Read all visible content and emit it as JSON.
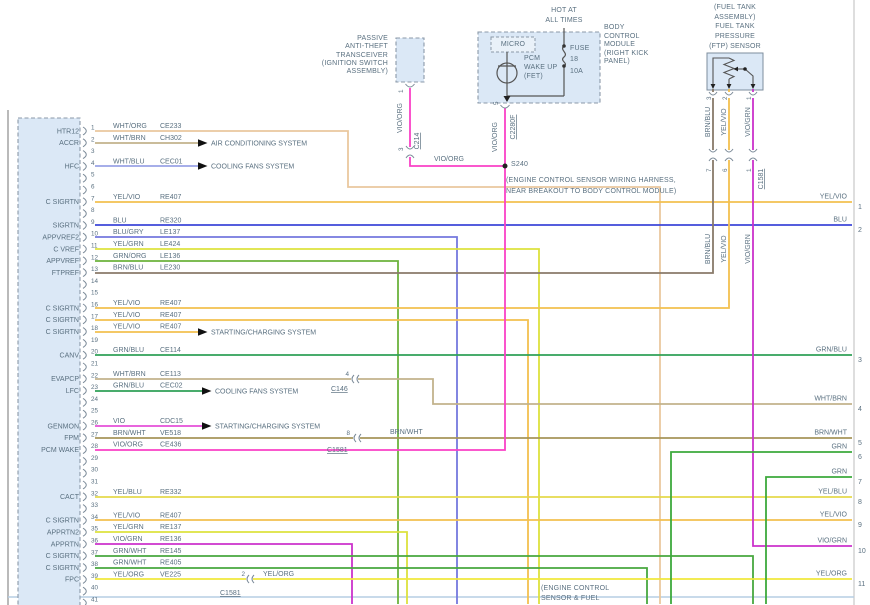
{
  "palette": {
    "WHT/ORG": "#eac89e",
    "WHT/BRN": "#c2b28c",
    "WHT/BLU": "#9aa2e6",
    "YEL/VIO": "#f3c04f",
    "BLU": "#3d47d8",
    "BLU/GRY": "#7478de",
    "YEL/GRN": "#dde23e",
    "GRN/ORG": "#6cb23c",
    "BRN/BLU": "#897a69",
    "GRN/BLU": "#2fa057",
    "VIO": "#e44fd8",
    "BRN/WHT": "#a6945a",
    "VIO/ORG": "#fa41c6",
    "YEL/BLU": "#e4d94b",
    "VIO/GRN": "#cb32cb",
    "GRN/WHT": "#47a83f",
    "YEL/ORG": "#f1e83b",
    "GRN": "#3da93c",
    "box_fill": "#dbe8f6",
    "box_border": "#8b99a8",
    "text": "#5a7080",
    "frame_left": "#8c8c8c",
    "frame_right": "#c9c9c9",
    "frame_bottom": "#b5cde4"
  },
  "pcm": {
    "pin_count": 41,
    "rows": [
      {
        "pin": 1,
        "label": "HTR12",
        "color": "WHT/ORG",
        "code": "CE233"
      },
      {
        "pin": 2,
        "label": "ACCR",
        "color": "WHT/BRN",
        "code": "CH302"
      },
      {
        "pin": 4,
        "label": "HFC",
        "color": "WHT/BLU",
        "code": "CEC01"
      },
      {
        "pin": 7,
        "label": "C SIGRTN",
        "color": "YEL/VIO",
        "code": "RE407"
      },
      {
        "pin": 9,
        "label": "SIGRTN",
        "color": "BLU",
        "code": "RE320"
      },
      {
        "pin": 10,
        "label": "APPVREF2",
        "color": "BLU/GRY",
        "code": "LE137"
      },
      {
        "pin": 11,
        "label": "C VREF",
        "color": "YEL/GRN",
        "code": "LE424"
      },
      {
        "pin": 12,
        "label": "APPVREF",
        "color": "GRN/ORG",
        "code": "LE136"
      },
      {
        "pin": 13,
        "label": "FTPREF",
        "color": "BRN/BLU",
        "code": "LE230"
      },
      {
        "pin": 16,
        "label": "C SIGRTN",
        "color": "YEL/VIO",
        "code": "RE407"
      },
      {
        "pin": 17,
        "label": "C SIGRTN",
        "color": "YEL/VIO",
        "code": "RE407"
      },
      {
        "pin": 18,
        "label": "C SIGRTN",
        "color": "YEL/VIO",
        "code": "RE407"
      },
      {
        "pin": 20,
        "label": "CANV",
        "color": "GRN/BLU",
        "code": "CE114"
      },
      {
        "pin": 22,
        "label": "EVAPCP",
        "color": "WHT/BRN",
        "code": "CE113"
      },
      {
        "pin": 23,
        "label": "LFC",
        "color": "GRN/BLU",
        "code": "CEC02"
      },
      {
        "pin": 26,
        "label": "GENMON",
        "color": "VIO",
        "code": "CDC15"
      },
      {
        "pin": 27,
        "label": "FPM",
        "color": "BRN/WHT",
        "code": "VE518"
      },
      {
        "pin": 28,
        "label": "PCM WAKE",
        "color": "VIO/ORG",
        "code": "CE436"
      },
      {
        "pin": 32,
        "label": "CACT",
        "color": "YEL/BLU",
        "code": "RE332"
      },
      {
        "pin": 34,
        "label": "C SIGRTN",
        "color": "YEL/VIO",
        "code": "RE407"
      },
      {
        "pin": 35,
        "label": "APPRTN2",
        "color": "YEL/GRN",
        "code": "RE137"
      },
      {
        "pin": 36,
        "label": "APPRTN",
        "color": "VIO/GRN",
        "code": "RE136"
      },
      {
        "pin": 37,
        "label": "C SIGRTN",
        "color": "GRN/WHT",
        "code": "RE145"
      },
      {
        "pin": 38,
        "label": "C SIGRTN",
        "color": "GRN/WHT",
        "code": "RE405"
      },
      {
        "pin": 39,
        "label": "FPC",
        "color": "YEL/ORG",
        "code": "VE225"
      }
    ]
  },
  "branches": [
    "AIR CONDITIONING SYSTEM",
    "COOLING FANS SYSTEM",
    "STARTING/CHARGING SYSTEM",
    "COOLING FANS SYSTEM",
    "STARTING/CHARGING SYSTEM"
  ],
  "right_edge": [
    {
      "n": "1",
      "label": "YEL/VIO"
    },
    {
      "n": "2",
      "label": "BLU"
    },
    {
      "n": "3",
      "label": "GRN/BLU"
    },
    {
      "n": "4",
      "label": "WHT/BRN"
    },
    {
      "n": "5",
      "label": "BRN/WHT"
    },
    {
      "n": "6",
      "label": "GRN"
    },
    {
      "n": "7",
      "label": "GRN"
    },
    {
      "n": "8",
      "label": "YEL/BLU"
    },
    {
      "n": "9",
      "label": "YEL/VIO"
    },
    {
      "n": "10",
      "label": "VIO/GRN"
    },
    {
      "n": "11",
      "label": "YEL/ORG"
    }
  ],
  "top": {
    "transceiver_lines": [
      "PASSIVE",
      "ANTI-THEFT",
      "TRANSCEIVER",
      "(IGNITION SWITCH",
      "ASSEMBLY)"
    ],
    "hot_lines": [
      "HOT AT",
      "ALL TIMES"
    ],
    "micro": "MICRO",
    "fet_lines": [
      "PCM",
      "WAKE UP",
      "(FET)"
    ],
    "fuse_lines": [
      "FUSE",
      "18",
      "10A"
    ],
    "bcm_lines": [
      "BODY",
      "CONTROL",
      "MODULE",
      "(RIGHT KICK",
      "PANEL)"
    ]
  },
  "ftp": {
    "title_lines": [
      "(FUEL TANK",
      "ASSEMBLY)",
      "FUEL TANK",
      "PRESSURE",
      "(FTP) SENSOR"
    ],
    "pin_numbers": [
      "3",
      "2",
      "1"
    ],
    "wire_colors": [
      "BRN/BLU",
      "YEL/VIO",
      "VIO/GRN"
    ],
    "c1581_pin_numbers": [
      "7",
      "6",
      "1"
    ]
  },
  "splice": {
    "name": "S240",
    "desc_lines": [
      "(ENGINE CONTROL SENSOR WIRING HARNESS,",
      "NEAR BREAKOUT TO BODY CONTROL MODULE)"
    ]
  },
  "connectors": {
    "c214": "C214",
    "c2280f": "C2280F",
    "c146": "C146",
    "c1581": "C1581"
  },
  "connector_pins": {
    "transceiver_pin": "1",
    "c214_pin": "3",
    "c2280f_pin": "5",
    "c146_pin": "4",
    "c1581_fpm_pin": "8",
    "c1581_fpc_pin": "2"
  },
  "inline_labels": {
    "vio_org": "VIO/ORG",
    "brn_wht": "BRN/WHT",
    "yel_org": "YEL/ORG"
  },
  "bottom_note_lines": [
    "(ENGINE CONTROL",
    "SENSOR & FUEL"
  ]
}
